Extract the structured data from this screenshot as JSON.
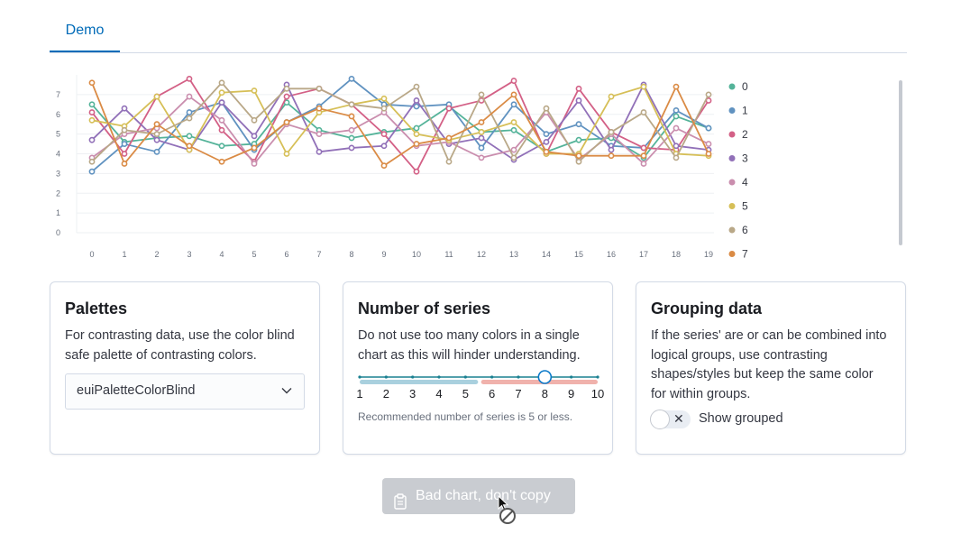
{
  "tabs": [
    {
      "label": "Demo"
    }
  ],
  "chart_data": {
    "type": "line",
    "x": [
      0,
      1,
      2,
      3,
      4,
      5,
      6,
      7,
      8,
      9,
      10,
      11,
      12,
      13,
      14,
      15,
      16,
      17,
      18,
      19
    ],
    "ylim": [
      0,
      8
    ],
    "yticks": [
      0,
      1,
      2,
      3,
      4,
      5,
      6,
      7
    ],
    "legend_position": "right",
    "series": [
      {
        "name": "0",
        "color": "#54b399",
        "values": [
          6.5,
          4.6,
          4.8,
          4.9,
          4.4,
          4.5,
          6.6,
          5.2,
          4.8,
          5.1,
          5.3,
          6.4,
          5.1,
          5.2,
          4.1,
          4.7,
          4.8,
          3.8,
          5.9,
          5.3
        ]
      },
      {
        "name": "1",
        "color": "#6092c0",
        "values": [
          3.1,
          4.5,
          4.1,
          6.1,
          6.6,
          4.2,
          5.6,
          6.4,
          7.8,
          6.5,
          6.4,
          6.5,
          4.3,
          6.5,
          5.0,
          5.5,
          4.4,
          4.3,
          6.2,
          5.3
        ]
      },
      {
        "name": "2",
        "color": "#d36086",
        "values": [
          6.1,
          4.0,
          6.9,
          7.8,
          5.2,
          3.6,
          6.9,
          7.3,
          6.5,
          5.0,
          3.1,
          6.3,
          6.7,
          7.7,
          4.0,
          7.3,
          5.1,
          4.3,
          4.2,
          6.7
        ]
      },
      {
        "name": "3",
        "color": "#9170b8",
        "values": [
          4.7,
          6.3,
          4.7,
          4.2,
          6.6,
          4.9,
          7.5,
          4.1,
          4.3,
          4.4,
          6.7,
          4.5,
          4.8,
          3.7,
          4.6,
          6.7,
          4.2,
          7.5,
          4.4,
          4.2
        ]
      },
      {
        "name": "4",
        "color": "#ca8eae",
        "values": [
          3.8,
          5.0,
          5.3,
          6.9,
          5.7,
          3.5,
          5.5,
          5.0,
          5.2,
          6.1,
          4.4,
          4.6,
          3.8,
          4.2,
          6.1,
          3.7,
          5.0,
          3.5,
          5.3,
          4.5
        ]
      },
      {
        "name": "5",
        "color": "#d6bf57",
        "values": [
          5.7,
          5.4,
          6.9,
          4.2,
          7.1,
          7.2,
          4.0,
          6.1,
          6.5,
          6.8,
          5.0,
          4.7,
          5.1,
          5.6,
          4.0,
          4.0,
          6.9,
          7.4,
          4.0,
          3.9
        ]
      },
      {
        "name": "6",
        "color": "#b9a888",
        "values": [
          3.6,
          5.2,
          5.0,
          5.8,
          7.6,
          5.7,
          7.3,
          7.3,
          6.5,
          6.3,
          7.4,
          3.6,
          7.0,
          3.8,
          6.3,
          3.6,
          5.1,
          6.1,
          3.8,
          7.0
        ]
      },
      {
        "name": "7",
        "color": "#da8b45",
        "values": [
          7.6,
          3.5,
          5.5,
          4.4,
          3.6,
          4.3,
          5.6,
          6.3,
          5.9,
          3.4,
          4.5,
          4.8,
          5.6,
          7.0,
          4.1,
          3.9,
          3.9,
          3.9,
          7.4,
          4.0
        ]
      }
    ]
  },
  "palettes": {
    "title": "Palettes",
    "description": "For contrasting data, use the color blind safe palette of contrasting colors.",
    "selected": "euiPaletteColorBlind"
  },
  "series_panel": {
    "title": "Number of series",
    "description": "Do not use too many colors in a single chart as this will hinder understanding.",
    "tick_labels": [
      "1",
      "2",
      "3",
      "4",
      "5",
      "6",
      "7",
      "8",
      "9",
      "10"
    ],
    "value": 8,
    "hint": "Recommended number of series is 5 or less."
  },
  "grouping": {
    "title": "Grouping data",
    "description": "If the series' are or can be combined into logical groups, use contrasting shapes/styles but keep the same color for within groups.",
    "toggle_label": "Show grouped",
    "toggle_on": false
  },
  "copy_button": {
    "label": "Bad chart, don't copy",
    "disabled": true
  },
  "icons": {
    "select": "chevron-down-icon",
    "copy": "clipboard-icon",
    "toggle": "cross-icon",
    "cursor": "not-allowed-cursor-icon"
  }
}
